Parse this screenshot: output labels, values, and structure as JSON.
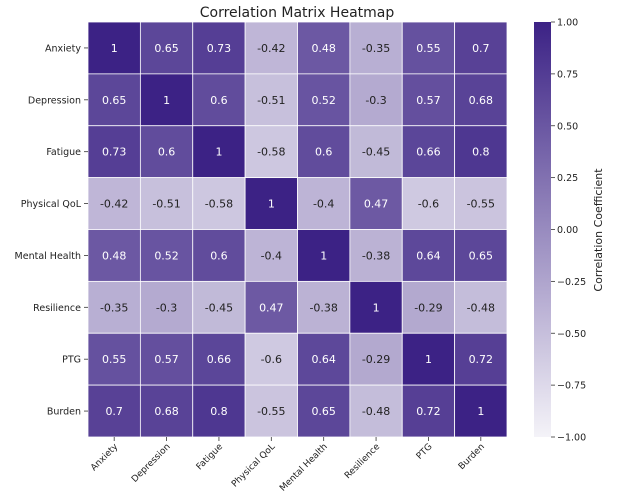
{
  "chart_data": {
    "type": "heatmap",
    "title": "Correlation Matrix Heatmap",
    "row_labels": [
      "Anxiety",
      "Depression",
      "Fatigue",
      "Physical QoL",
      "Mental Health",
      "Resilience",
      "PTG",
      "Burden"
    ],
    "col_labels": [
      "Anxiety",
      "Depression",
      "Fatigue",
      "Physical QoL",
      "Mental Health",
      "Resilience",
      "PTG",
      "Burden"
    ],
    "values": [
      [
        1,
        0.65,
        0.73,
        -0.42,
        0.48,
        -0.35,
        0.55,
        0.7
      ],
      [
        0.65,
        1,
        0.6,
        -0.51,
        0.52,
        -0.3,
        0.57,
        0.68
      ],
      [
        0.73,
        0.6,
        1,
        -0.58,
        0.6,
        -0.45,
        0.66,
        0.8
      ],
      [
        -0.42,
        -0.51,
        -0.58,
        1,
        -0.4,
        0.47,
        -0.6,
        -0.55
      ],
      [
        0.48,
        0.52,
        0.6,
        -0.4,
        1,
        -0.38,
        0.64,
        0.65
      ],
      [
        -0.35,
        -0.3,
        -0.45,
        0.47,
        -0.38,
        1,
        -0.29,
        -0.48
      ],
      [
        0.55,
        0.57,
        0.66,
        -0.6,
        0.64,
        -0.29,
        1,
        0.72
      ],
      [
        0.7,
        0.68,
        0.8,
        -0.55,
        0.65,
        -0.48,
        0.72,
        1
      ]
    ],
    "colorbar": {
      "label": "Correlation Coefficient",
      "range": [
        -1,
        1
      ],
      "ticks": [
        "1.00",
        "0.75",
        "0.50",
        "0.25",
        "0.00",
        "−0.25",
        "−0.50",
        "−0.75",
        "−1.00"
      ],
      "tick_values": [
        1,
        0.75,
        0.5,
        0.25,
        0,
        -0.25,
        -0.5,
        -0.75,
        -1
      ],
      "low_color": "#f4f3f8",
      "high_color": "#3c2285"
    }
  }
}
